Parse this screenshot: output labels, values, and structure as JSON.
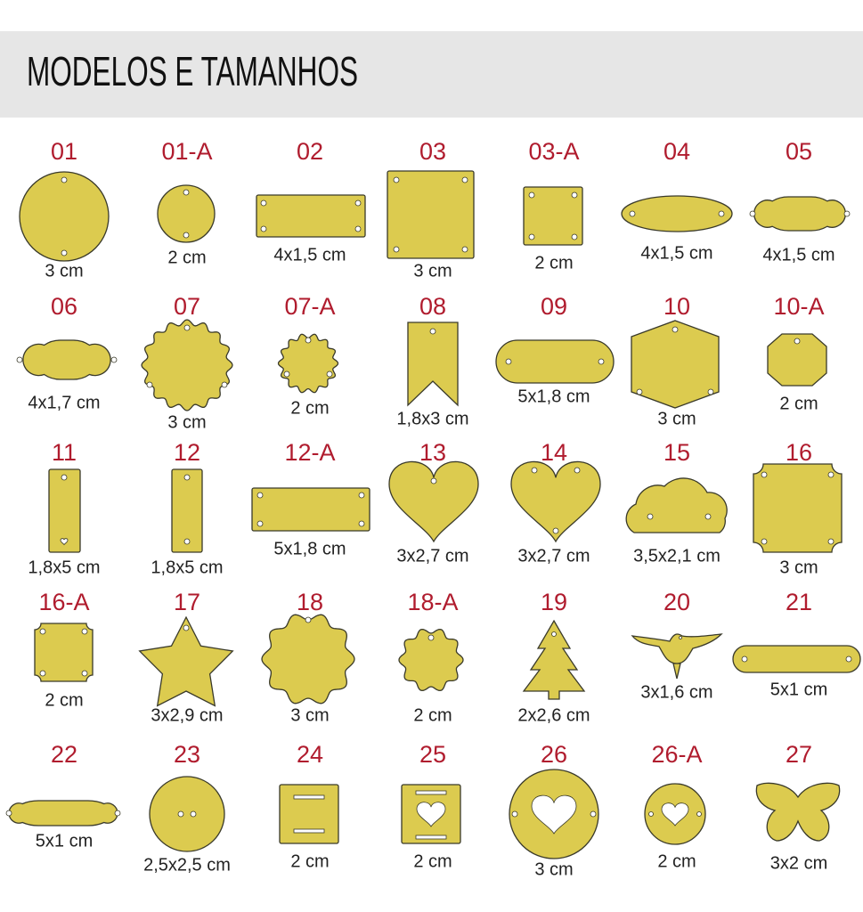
{
  "header": {
    "title": "MODELOS E TAMANHOS"
  },
  "items": [
    {
      "code": "01",
      "size": "3 cm"
    },
    {
      "code": "01-A",
      "size": "2 cm"
    },
    {
      "code": "02",
      "size": "4x1,5 cm"
    },
    {
      "code": "03",
      "size": "3 cm"
    },
    {
      "code": "03-A",
      "size": "2 cm"
    },
    {
      "code": "04",
      "size": "4x1,5 cm"
    },
    {
      "code": "05",
      "size": "4x1,5 cm"
    },
    {
      "code": "06",
      "size": "4x1,7 cm"
    },
    {
      "code": "07",
      "size": "3 cm"
    },
    {
      "code": "07-A",
      "size": "2 cm"
    },
    {
      "code": "08",
      "size": "1,8x3 cm"
    },
    {
      "code": "09",
      "size": "5x1,8 cm"
    },
    {
      "code": "10",
      "size": "3 cm"
    },
    {
      "code": "10-A",
      "size": "2 cm"
    },
    {
      "code": "11",
      "size": "1,8x5 cm"
    },
    {
      "code": "12",
      "size": "1,8x5 cm"
    },
    {
      "code": "12-A",
      "size": "5x1,8 cm"
    },
    {
      "code": "13",
      "size": "3x2,7 cm"
    },
    {
      "code": "14",
      "size": "3x2,7 cm"
    },
    {
      "code": "15",
      "size": "3,5x2,1 cm"
    },
    {
      "code": "16",
      "size": "3 cm"
    },
    {
      "code": "16-A",
      "size": "2 cm"
    },
    {
      "code": "17",
      "size": "3x2,9 cm"
    },
    {
      "code": "18",
      "size": "3 cm"
    },
    {
      "code": "18-A",
      "size": "2 cm"
    },
    {
      "code": "19",
      "size": "2x2,6 cm"
    },
    {
      "code": "20",
      "size": "3x1,6 cm"
    },
    {
      "code": "21",
      "size": "5x1 cm"
    },
    {
      "code": "22",
      "size": "5x1 cm"
    },
    {
      "code": "23",
      "size": "2,5x2,5 cm"
    },
    {
      "code": "24",
      "size": "2 cm"
    },
    {
      "code": "25",
      "size": "2 cm"
    },
    {
      "code": "26",
      "size": "3 cm"
    },
    {
      "code": "26-A",
      "size": "2 cm"
    },
    {
      "code": "27",
      "size": "3x2 cm"
    }
  ]
}
